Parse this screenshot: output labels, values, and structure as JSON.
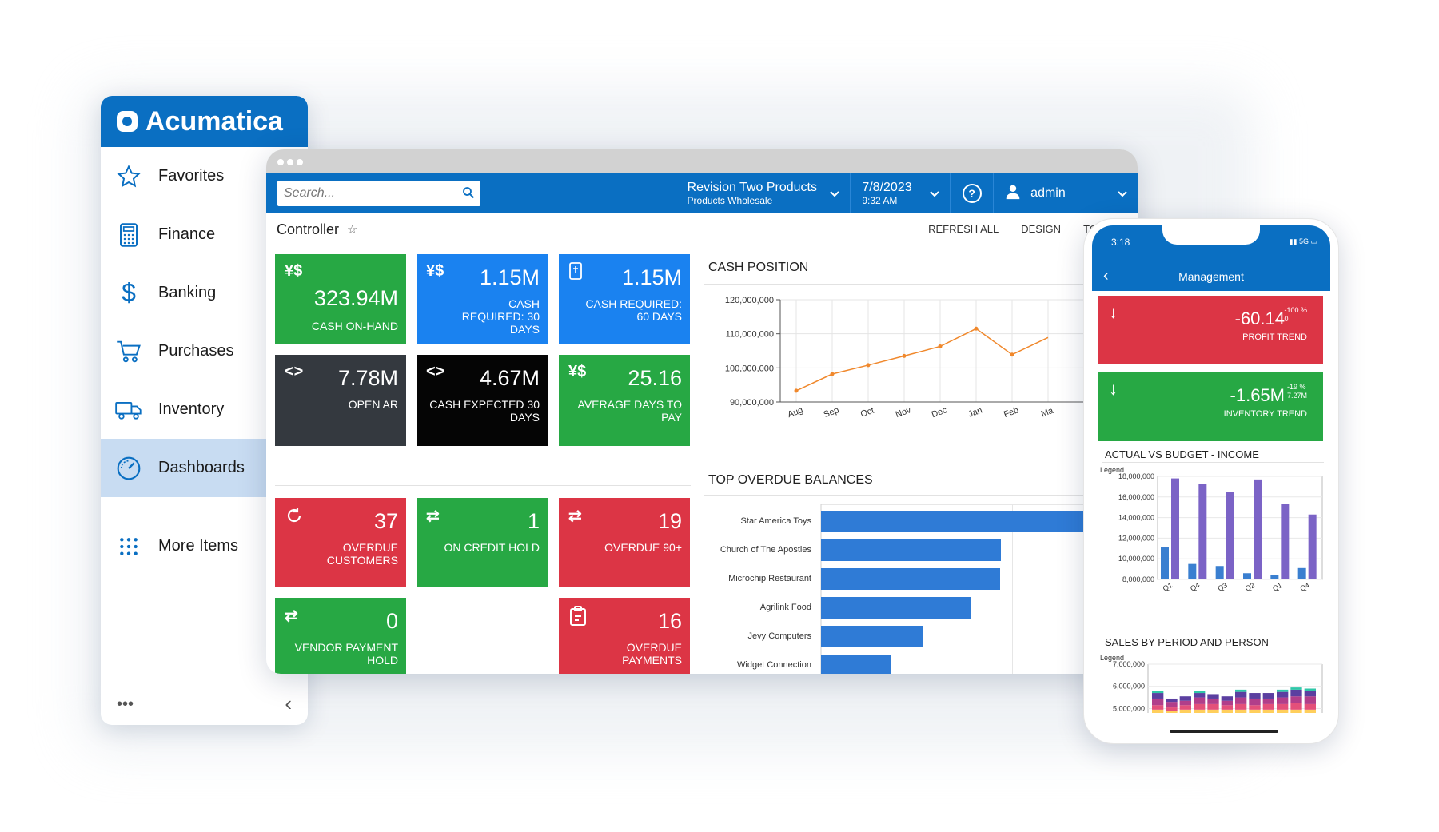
{
  "sidebar": {
    "brand": "Acumatica",
    "items": [
      {
        "label": "Favorites",
        "icon": "star-icon"
      },
      {
        "label": "Finance",
        "icon": "calculator-icon"
      },
      {
        "label": "Banking",
        "icon": "dollar-icon"
      },
      {
        "label": "Purchases",
        "icon": "cart-icon"
      },
      {
        "label": "Inventory",
        "icon": "truck-icon"
      },
      {
        "label": "Dashboards",
        "icon": "gauge-icon",
        "active": true
      },
      {
        "label": "More Items",
        "icon": "grid-icon"
      }
    ],
    "more": "•••",
    "collapse": "‹"
  },
  "topbar": {
    "search_placeholder": "Search...",
    "company": "Revision Two Products",
    "branch": "Products Wholesale",
    "date": "7/8/2023",
    "time": "9:32 AM",
    "help": "?",
    "user": "admin"
  },
  "page": {
    "title": "Controller",
    "actions": [
      "REFRESH ALL",
      "DESIGN",
      "TOO"
    ]
  },
  "tiles": [
    {
      "value": "323.94M",
      "label": "CASH ON-HAND",
      "icon": "currency-icon",
      "color": "#27a844"
    },
    {
      "value": "1.15M",
      "label": "CASH REQUIRED: 30 DAYS",
      "icon": "currency-icon",
      "color": "#1a82f0"
    },
    {
      "value": "1.15M",
      "label": "CASH REQUIRED: 60 DAYS",
      "icon": "document-icon",
      "color": "#1a82f0"
    },
    {
      "value": "7.78M",
      "label": "OPEN AR",
      "icon": "code-icon",
      "color": "#34393f"
    },
    {
      "value": "4.67M",
      "label": "CASH EXPECTED 30 DAYS",
      "icon": "code-icon",
      "color": "#050505"
    },
    {
      "value": "25.16",
      "label": "AVERAGE DAYS TO PAY",
      "icon": "currency-icon",
      "color": "#27a844"
    },
    {
      "value": "37",
      "label": "OVERDUE CUSTOMERS",
      "icon": "refresh-icon",
      "color": "#dc3545"
    },
    {
      "value": "1",
      "label": "ON CREDIT HOLD",
      "icon": "transfer-icon",
      "color": "#27a844"
    },
    {
      "value": "19",
      "label": "OVERDUE 90+",
      "icon": "transfer-icon",
      "color": "#dc3545"
    },
    {
      "value": "0",
      "label": "VENDOR PAYMENT HOLD",
      "icon": "transfer-icon",
      "color": "#27a844"
    },
    {
      "value": "16",
      "label": "OVERDUE PAYMENTS",
      "icon": "clipboard-icon",
      "color": "#dc3545"
    }
  ],
  "chart_data": [
    {
      "type": "line",
      "title": "CASH POSITION",
      "x": [
        "Aug",
        "Sep",
        "Oct",
        "Nov",
        "Dec",
        "Jan",
        "Feb",
        "Ma"
      ],
      "yticks": [
        "120,000,000",
        "110,000,000",
        "100,000,000",
        "90,000,000"
      ],
      "ylim": [
        90000000,
        120000000
      ],
      "series": [
        {
          "values": [
            93300000,
            98200000,
            100800000,
            103500000,
            106300000,
            111500000,
            103900000,
            108900000
          ],
          "color": "#f0882c"
        }
      ],
      "grid": true
    },
    {
      "type": "bar",
      "title": "TOP OVERDUE BALANCES",
      "orientation": "horizontal",
      "categories": [
        "Star America Toys",
        "Church of The Apostles",
        "Microchip Restaurant",
        "Agrilink Food",
        "Jevy Computers",
        "Widget Connection"
      ],
      "values": [
        340,
        225,
        224,
        188,
        128,
        87
      ],
      "xlim": [
        0,
        385
      ],
      "color": "#2f7bd6"
    },
    {
      "type": "bar",
      "title": "ACTUAL VS BUDGET - INCOME",
      "legend": "Legend",
      "categories": [
        "Q1",
        "Q4",
        "Q3",
        "Q2",
        "Q1",
        "Q4"
      ],
      "yticks": [
        "18,000,000",
        "16,000,000",
        "14,000,000",
        "12,000,000",
        "10,000,000",
        "8,000,000"
      ],
      "ylim": [
        8000000,
        18000000
      ],
      "series": [
        {
          "values": [
            11100000,
            9500000,
            9300000,
            8600000,
            8400000,
            9100000
          ],
          "color": "#3a7fd0"
        },
        {
          "values": [
            17800000,
            17300000,
            16500000,
            17700000,
            15300000,
            14300000
          ],
          "color": "#7b63c6"
        },
        {
          "values": [
            17500000,
            16800000,
            16200000,
            17400000,
            15000000,
            14000000
          ],
          "color": "#7b63c6"
        }
      ]
    },
    {
      "type": "bar",
      "title": "SALES BY PERIOD AND PERSON",
      "legend": "Legend",
      "stacked": true,
      "yticks": [
        "7,000,000",
        "6,000,000",
        "5,000,000"
      ],
      "ylim": [
        4800000,
        7000000
      ],
      "colors": [
        "#ffcf5c",
        "#e4507a",
        "#b13e8a",
        "#5b3fa0",
        "#2fc7a8"
      ],
      "bars": [
        [
          4950000,
          200000,
          300000,
          250000,
          100000
        ],
        [
          4900000,
          150000,
          250000,
          150000,
          0
        ],
        [
          4950000,
          200000,
          200000,
          200000,
          0
        ],
        [
          4950000,
          250000,
          300000,
          200000,
          100000
        ],
        [
          4950000,
          250000,
          250000,
          200000,
          0
        ],
        [
          4950000,
          200000,
          200000,
          200000,
          0
        ],
        [
          4950000,
          250000,
          300000,
          250000,
          100000
        ],
        [
          4950000,
          200000,
          300000,
          250000,
          0
        ],
        [
          4950000,
          250000,
          250000,
          250000,
          0
        ],
        [
          4950000,
          250000,
          300000,
          250000,
          100000
        ],
        [
          4950000,
          300000,
          300000,
          300000,
          100000
        ],
        [
          4950000,
          250000,
          350000,
          250000,
          100000
        ]
      ]
    }
  ],
  "phone": {
    "time": "3:18",
    "status": "5G",
    "title": "Management",
    "tiles": [
      {
        "value": "-60.14",
        "sup1": "-100 %",
        "sup2": "0",
        "label": "PROFIT TREND",
        "color": "#dc3545"
      },
      {
        "value": "-1.65M",
        "sup1": "-19 %",
        "sup2": "7.27M",
        "label": "INVENTORY TREND",
        "color": "#27a844"
      }
    ]
  }
}
